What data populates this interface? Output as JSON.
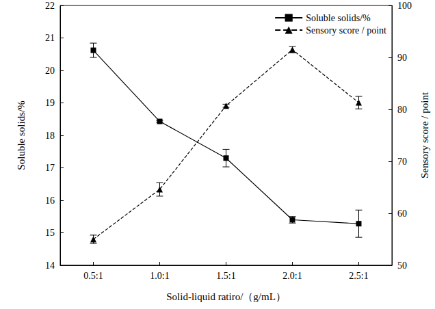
{
  "chart_data": {
    "type": "line",
    "xlabel": "Solid-liquid ratiro/（g/mL）",
    "ylabel": "Soluble solids/%",
    "y2label": "Sensory score / point",
    "categories": [
      "0.5:1",
      "1.0:1",
      "1.5:1",
      "2.0:1",
      "2.5:1"
    ],
    "series": [
      {
        "name": "Soluble solids/%",
        "color": "#000000",
        "marker": "square",
        "line_style": "solid",
        "values": [
          20.62,
          18.43,
          17.3,
          15.4,
          15.28
        ],
        "errors": [
          0.22,
          0.03,
          0.27,
          0.1,
          0.42
        ]
      },
      {
        "name": "Sensory score / point",
        "color": "#000000",
        "marker": "triangle",
        "line_style": "dashed",
        "axis": "y2",
        "values": [
          55.0,
          64.6,
          80.7,
          91.5,
          81.3
        ],
        "errors": [
          0.8,
          1.3,
          0.3,
          0.6,
          1.2
        ]
      }
    ],
    "ylim": [
      14,
      22
    ],
    "yticks": [
      14,
      15,
      16,
      17,
      18,
      19,
      20,
      21,
      22
    ],
    "y2lim": [
      50,
      100
    ],
    "y2ticks": [
      50,
      60,
      70,
      80,
      90,
      100
    ],
    "grid": false,
    "legend": "upper right"
  }
}
